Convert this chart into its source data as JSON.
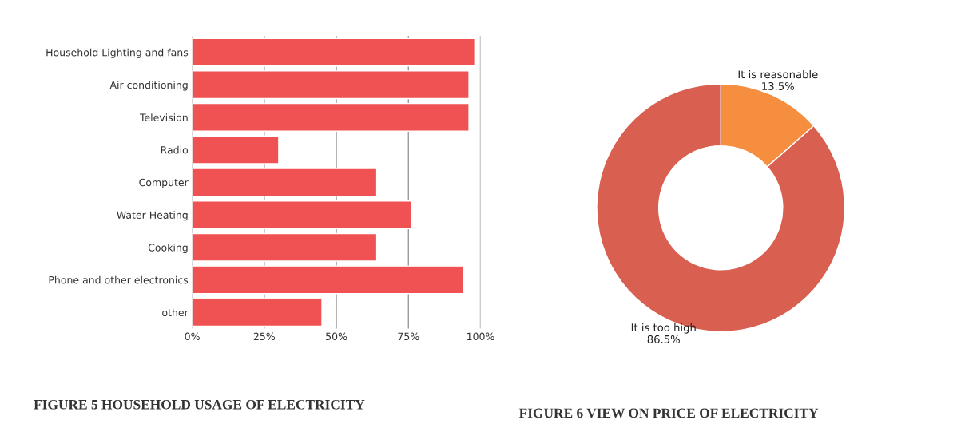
{
  "chart_data": [
    {
      "type": "bar",
      "orientation": "horizontal",
      "title": "FIGURE 5 HOUSEHOLD USAGE OF ELECTRICITY",
      "categories": [
        "Household Lighting and fans",
        "Air conditioning",
        "Television",
        "Radio",
        "Computer",
        "Water Heating",
        "Cooking",
        "Phone and other electronics",
        "other"
      ],
      "values": [
        98,
        96,
        96,
        30,
        64,
        76,
        64,
        94,
        45
      ],
      "color": "#f05152",
      "xlim": [
        0,
        100
      ],
      "xticks": [
        {
          "value": 0,
          "label": "0%"
        },
        {
          "value": 25,
          "label": "25%"
        },
        {
          "value": 50,
          "label": "50%"
        },
        {
          "value": 75,
          "label": "75%"
        },
        {
          "value": 100,
          "label": "100%"
        }
      ],
      "grid": "x",
      "legend": false
    },
    {
      "type": "donut",
      "title": "FIGURE 6 VIEW ON PRICE OF ELECTRICITY",
      "categories": [
        "It is reasonable",
        "It is too high"
      ],
      "values": [
        13.5,
        86.5
      ],
      "colors": [
        "#f58f3f",
        "#d95f50"
      ],
      "value_labels": [
        "13.5%",
        "86.5%"
      ],
      "legend": false
    }
  ]
}
